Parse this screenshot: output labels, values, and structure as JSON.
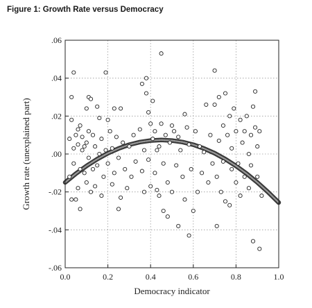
{
  "figure_title": "Figure 1: Growth Rate versus Democracy",
  "chart_data": {
    "type": "scatter",
    "title": "Figure 1: Growth Rate versus Democracy",
    "xlabel": "Democracy indicator",
    "ylabel": "Growth rate (unexplained part)",
    "xlim": [
      0,
      1
    ],
    "ylim": [
      -0.06,
      0.06
    ],
    "x_tick_labels": [
      "0.0",
      "0.2",
      "0.4",
      "0.6",
      "0.8",
      "1.0"
    ],
    "y_tick_labels": [
      ".06",
      ".04",
      ".02",
      ".00",
      "-.02",
      "-.04",
      "-.06"
    ],
    "x_ticks": [
      0,
      0.2,
      0.4,
      0.6,
      0.8,
      1.0
    ],
    "y_ticks": [
      0.06,
      0.04,
      0.02,
      0.0,
      -0.02,
      -0.04,
      -0.06
    ],
    "grid": true,
    "fit_curve": {
      "form": "quadratic",
      "x": [
        0,
        0.05,
        0.1,
        0.15,
        0.2,
        0.25,
        0.3,
        0.35,
        0.4,
        0.45,
        0.5,
        0.55,
        0.6,
        0.65,
        0.7,
        0.75,
        0.8,
        0.85,
        0.9,
        0.95,
        1.0
      ],
      "y": [
        -0.015,
        -0.0104,
        -0.0063,
        -0.0027,
        0.0004,
        0.0029,
        0.0049,
        0.0063,
        0.0071,
        0.0074,
        0.0071,
        0.0063,
        0.0049,
        0.0029,
        0.0004,
        -0.0027,
        -0.0063,
        -0.0104,
        -0.015,
        -0.0201,
        -0.0256
      ]
    },
    "points": [
      [
        0.02,
        0.008
      ],
      [
        0.02,
        -0.012
      ],
      [
        0.03,
        0.03
      ],
      [
        0.03,
        -0.024
      ],
      [
        0.03,
        0.018
      ],
      [
        0.04,
        0.043
      ],
      [
        0.04,
        0.003
      ],
      [
        0.04,
        -0.005
      ],
      [
        0.05,
        0.01
      ],
      [
        0.05,
        -0.024
      ],
      [
        0.06,
        0.013
      ],
      [
        0.06,
        -0.018
      ],
      [
        0.06,
        0.005
      ],
      [
        0.07,
        -0.029
      ],
      [
        0.07,
        0.015
      ],
      [
        0.07,
        -0.008
      ],
      [
        0.08,
        0.002
      ],
      [
        0.08,
        0.009
      ],
      [
        0.09,
        -0.01
      ],
      [
        0.09,
        0.004
      ],
      [
        0.1,
        -0.015
      ],
      [
        0.1,
        0.024
      ],
      [
        0.1,
        0.006
      ],
      [
        0.11,
        0.03
      ],
      [
        0.11,
        -0.002
      ],
      [
        0.11,
        0.012
      ],
      [
        0.12,
        0.029
      ],
      [
        0.12,
        -0.02
      ],
      [
        0.13,
        -0.008
      ],
      [
        0.13,
        0.01
      ],
      [
        0.14,
        0.004
      ],
      [
        0.14,
        -0.017
      ],
      [
        0.15,
        0.025
      ],
      [
        0.15,
        -0.006
      ],
      [
        0.16,
        0.0
      ],
      [
        0.16,
        0.019
      ],
      [
        0.17,
        -0.022
      ],
      [
        0.17,
        0.008
      ],
      [
        0.18,
        -0.012
      ],
      [
        0.19,
        0.043
      ],
      [
        0.19,
        0.002
      ],
      [
        0.2,
        -0.005
      ],
      [
        0.2,
        0.018
      ],
      [
        0.21,
        0.012
      ],
      [
        0.22,
        -0.016
      ],
      [
        0.22,
        0.003
      ],
      [
        0.23,
        0.024
      ],
      [
        0.23,
        -0.01
      ],
      [
        0.24,
        0.009
      ],
      [
        0.25,
        -0.002
      ],
      [
        0.25,
        -0.029
      ],
      [
        0.26,
        0.024
      ],
      [
        0.26,
        -0.023
      ],
      [
        0.27,
        0.006
      ],
      [
        0.28,
        -0.008
      ],
      [
        0.29,
        -0.018
      ],
      [
        0.3,
        0.004
      ],
      [
        0.31,
        -0.012
      ],
      [
        0.32,
        0.01
      ],
      [
        0.33,
        -0.004
      ],
      [
        0.35,
        0.013
      ],
      [
        0.36,
        0.037
      ],
      [
        0.36,
        -0.009
      ],
      [
        0.37,
        0.002
      ],
      [
        0.37,
        -0.02
      ],
      [
        0.38,
        0.032
      ],
      [
        0.38,
        0.04
      ],
      [
        0.39,
        0.022
      ],
      [
        0.39,
        -0.003
      ],
      [
        0.4,
        0.016
      ],
      [
        0.4,
        -0.017
      ],
      [
        0.41,
        0.028
      ],
      [
        0.41,
        0.008
      ],
      [
        0.42,
        -0.01
      ],
      [
        0.42,
        0.012
      ],
      [
        0.43,
        -0.019
      ],
      [
        0.43,
        0.002
      ],
      [
        0.44,
        0.004
      ],
      [
        0.44,
        -0.022
      ],
      [
        0.45,
        0.053
      ],
      [
        0.45,
        0.016
      ],
      [
        0.46,
        -0.03
      ],
      [
        0.46,
        -0.005
      ],
      [
        0.47,
        0.01
      ],
      [
        0.48,
        -0.015
      ],
      [
        0.48,
        -0.033
      ],
      [
        0.49,
        0.006
      ],
      [
        0.5,
        0.015
      ],
      [
        0.5,
        -0.02
      ],
      [
        0.51,
        0.012
      ],
      [
        0.52,
        -0.006
      ],
      [
        0.53,
        -0.038
      ],
      [
        0.53,
        0.009
      ],
      [
        0.54,
        0.002
      ],
      [
        0.55,
        -0.012
      ],
      [
        0.56,
        0.021
      ],
      [
        0.56,
        -0.024
      ],
      [
        0.57,
        0.014
      ],
      [
        0.58,
        -0.043
      ],
      [
        0.58,
        0.005
      ],
      [
        0.59,
        -0.008
      ],
      [
        0.6,
        -0.03
      ],
      [
        0.61,
        0.012
      ],
      [
        0.62,
        -0.02
      ],
      [
        0.63,
        0.004
      ],
      [
        0.64,
        -0.01
      ],
      [
        0.65,
        0.001
      ],
      [
        0.66,
        0.026
      ],
      [
        0.67,
        -0.015
      ],
      [
        0.68,
        0.01
      ],
      [
        0.69,
        -0.005
      ],
      [
        0.7,
        0.044
      ],
      [
        0.7,
        0.026
      ],
      [
        0.71,
        -0.038
      ],
      [
        0.71,
        -0.012
      ],
      [
        0.72,
        0.007
      ],
      [
        0.72,
        0.03
      ],
      [
        0.73,
        -0.02
      ],
      [
        0.74,
        0.015
      ],
      [
        0.74,
        -0.004
      ],
      [
        0.75,
        0.032
      ],
      [
        0.75,
        -0.025
      ],
      [
        0.76,
        0.01
      ],
      [
        0.77,
        -0.027
      ],
      [
        0.77,
        0.02
      ],
      [
        0.78,
        -0.008
      ],
      [
        0.78,
        0.003
      ],
      [
        0.79,
        0.024
      ],
      [
        0.8,
        -0.015
      ],
      [
        0.8,
        0.012
      ],
      [
        0.81,
        -0.005
      ],
      [
        0.82,
        0.018
      ],
      [
        0.82,
        -0.022
      ],
      [
        0.83,
        0.006
      ],
      [
        0.84,
        0.012
      ],
      [
        0.84,
        -0.012
      ],
      [
        0.85,
        0.02
      ],
      [
        0.86,
        -0.018
      ],
      [
        0.86,
        0.0
      ],
      [
        0.87,
        0.01
      ],
      [
        0.87,
        -0.006
      ],
      [
        0.88,
        0.025
      ],
      [
        0.88,
        -0.046
      ],
      [
        0.89,
        0.033
      ],
      [
        0.89,
        0.014
      ],
      [
        0.9,
        -0.012
      ],
      [
        0.9,
        0.004
      ],
      [
        0.91,
        -0.05
      ],
      [
        0.91,
        0.012
      ],
      [
        0.92,
        -0.022
      ]
    ]
  }
}
